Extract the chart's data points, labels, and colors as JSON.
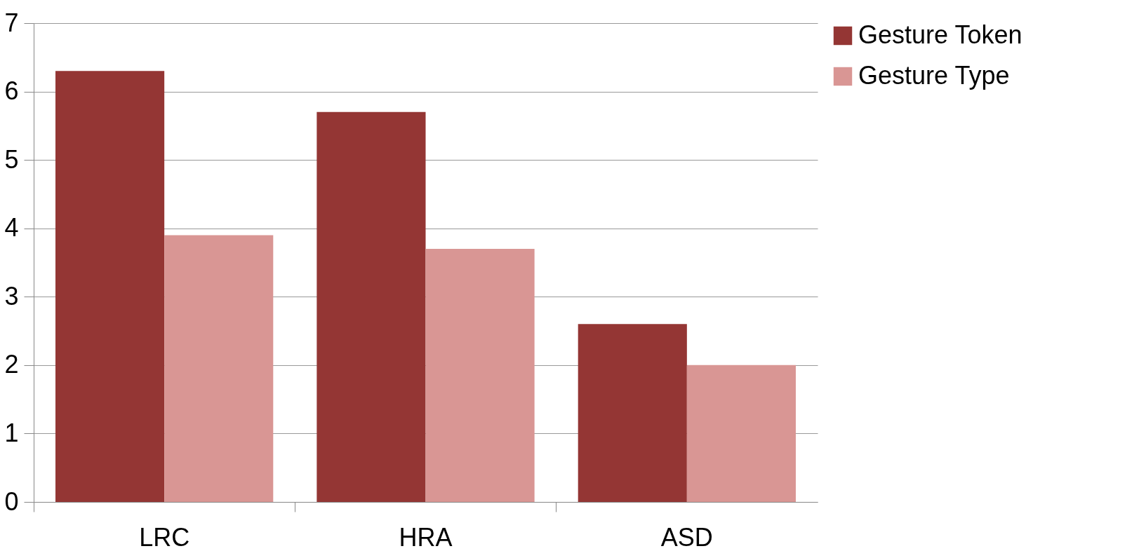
{
  "chart_data": {
    "type": "bar",
    "categories": [
      "LRC",
      "HRA",
      "ASD"
    ],
    "series": [
      {
        "name": "Gesture Token",
        "color": "#943634",
        "values": [
          6.3,
          5.7,
          2.6
        ]
      },
      {
        "name": "Gesture Type",
        "color": "#d99694",
        "values": [
          3.9,
          3.7,
          2.0
        ]
      }
    ],
    "ylim": [
      0,
      7
    ],
    "yticks": [
      0,
      1,
      2,
      3,
      4,
      5,
      6,
      7
    ],
    "grid": "y",
    "legend": "right"
  }
}
